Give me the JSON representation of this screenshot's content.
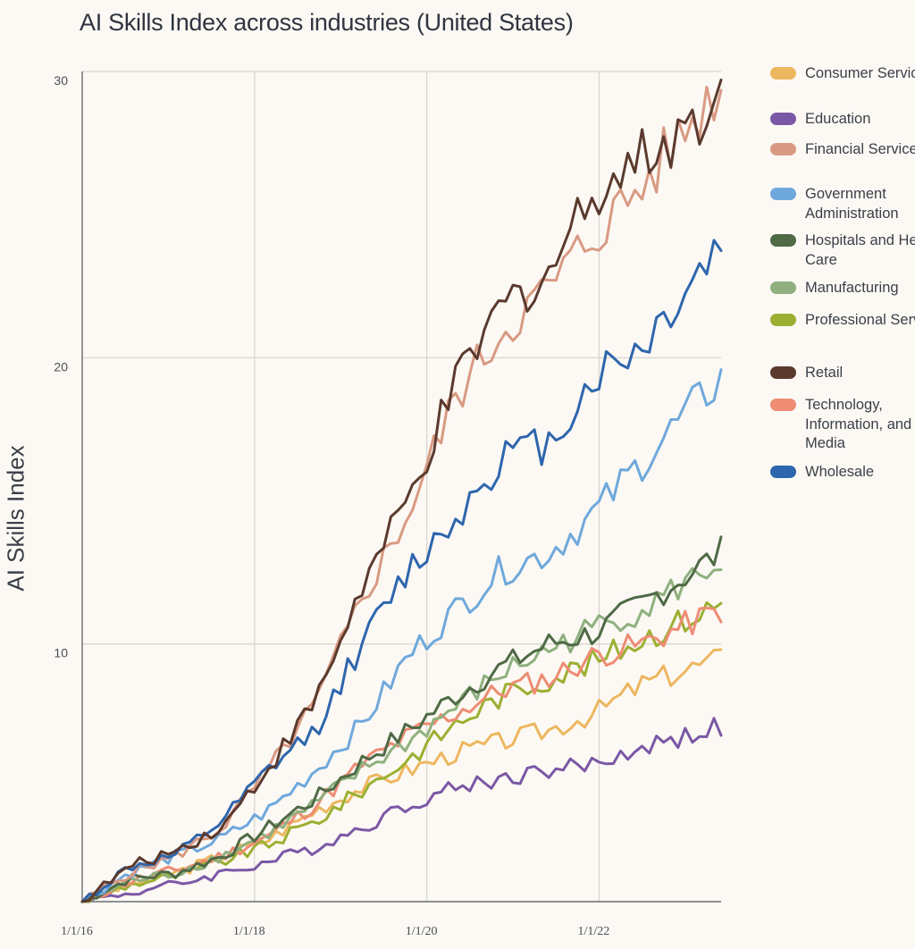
{
  "chart_data": {
    "type": "line",
    "title": "AI Skills Index across industries (United States)",
    "xlabel": "",
    "ylabel": "AI Skills Index",
    "x_start": "1/1/16",
    "x_end": "1/1/23",
    "xlim": [
      "1/1/16",
      "6/1/23"
    ],
    "ylim": [
      1,
      30
    ],
    "yticks": [
      10,
      20,
      30
    ],
    "xticks": [
      "1/1/16",
      "1/1/18",
      "1/1/20",
      "1/1/22"
    ],
    "grid": true,
    "legend_position": "right",
    "series": [
      {
        "name": "Consumer Services",
        "color": "#edb75f",
        "values": [
          1.0,
          1.6,
          2.0,
          2.6,
          3.2,
          4.2,
          5.0,
          5.6,
          6.2,
          6.6,
          7.0,
          7.6,
          8.6,
          9.5
        ]
      },
      {
        "name": "Education",
        "color": "#7b58a6",
        "values": [
          1.0,
          1.3,
          1.6,
          2.0,
          2.4,
          2.9,
          3.6,
          4.4,
          5.0,
          5.3,
          5.6,
          5.8,
          6.4,
          7.1
        ]
      },
      {
        "name": "Financial Services",
        "color": "#d99a83",
        "values": [
          1.0,
          2.0,
          2.6,
          3.6,
          5.6,
          7.9,
          11.6,
          14.6,
          18.6,
          21.0,
          22.4,
          24.4,
          26.0,
          29.6
        ]
      },
      {
        "name": "Government Administration",
        "color": "#6fa8dc",
        "values": [
          1.0,
          2.0,
          2.6,
          3.2,
          4.2,
          5.6,
          7.2,
          9.6,
          11.2,
          12.6,
          13.2,
          14.6,
          16.4,
          19.3
        ]
      },
      {
        "name": "Hospitals and Health Care",
        "color": "#4f6a45",
        "values": [
          1.0,
          1.8,
          2.0,
          2.6,
          3.6,
          4.6,
          5.9,
          7.0,
          8.2,
          9.2,
          10.0,
          10.4,
          11.4,
          13.2
        ]
      },
      {
        "name": "Manufacturing",
        "color": "#8fb07e",
        "values": [
          1.0,
          1.7,
          2.0,
          2.6,
          3.4,
          4.4,
          5.6,
          6.6,
          7.8,
          9.0,
          9.8,
          10.6,
          11.2,
          12.9
        ]
      },
      {
        "name": "Professional Services",
        "color": "#9bb032",
        "values": [
          1.0,
          1.6,
          1.9,
          2.4,
          3.0,
          3.8,
          4.9,
          6.0,
          7.2,
          8.2,
          8.8,
          9.4,
          10.2,
          11.4
        ]
      },
      {
        "name": "Retail",
        "color": "#5b3a2e",
        "values": [
          1.0,
          2.2,
          2.8,
          3.6,
          5.7,
          8.0,
          12.0,
          15.0,
          19.0,
          21.8,
          23.0,
          26.0,
          27.0,
          29.0
        ]
      },
      {
        "name": "Technology, Information, and Media",
        "color": "#ee8c74",
        "values": [
          1.0,
          1.7,
          2.1,
          2.6,
          3.3,
          4.4,
          5.8,
          6.8,
          7.6,
          8.4,
          8.8,
          9.6,
          10.0,
          11.2
        ]
      },
      {
        "name": "Wholesale",
        "color": "#2e66ad",
        "values": [
          1.0,
          2.2,
          2.6,
          3.8,
          5.6,
          7.0,
          10.0,
          12.6,
          14.4,
          16.6,
          17.0,
          19.4,
          20.4,
          24.0
        ]
      }
    ]
  },
  "legend": {
    "items": [
      {
        "label": "Consumer Services",
        "color": "#edb75f"
      },
      {
        "label": "Education",
        "color": "#7b58a6"
      },
      {
        "label": "Financial Services",
        "color": "#d99a83"
      },
      {
        "label": "Government Administration",
        "color": "#6fa8dc"
      },
      {
        "label": "Hospitals and Health Care",
        "color": "#4f6a45"
      },
      {
        "label": "Manufacturing",
        "color": "#8fb07e"
      },
      {
        "label": "Professional Services",
        "color": "#9bb032"
      },
      {
        "label": "Retail",
        "color": "#5b3a2e"
      },
      {
        "label": "Technology, Information, and Media",
        "color": "#ee8c74"
      },
      {
        "label": "Wholesale",
        "color": "#2e66ad"
      }
    ]
  }
}
